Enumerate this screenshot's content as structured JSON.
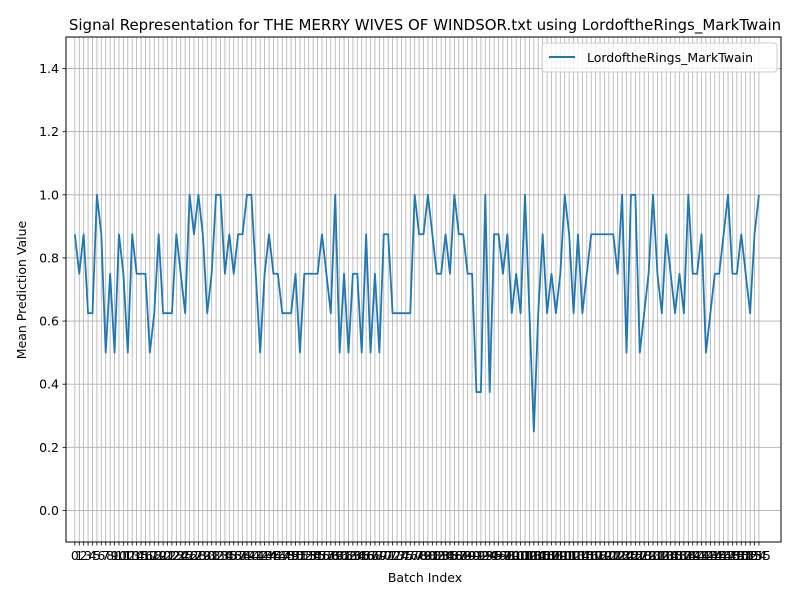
{
  "chart_data": {
    "type": "line",
    "title": "Signal Representation for THE MERRY WIVES OF WINDSOR.txt using LordoftheRings_MarkTwain",
    "xlabel": "Batch Index",
    "ylabel": "Mean Prediction Value",
    "xlim": [
      -2,
      160
    ],
    "ylim": [
      -0.1,
      1.5
    ],
    "yticks": [
      0.0,
      0.2,
      0.4,
      0.6,
      0.8,
      1.0,
      1.2,
      1.4
    ],
    "grid": true,
    "legend_position": "top-right",
    "series": [
      {
        "name": "LordoftheRings_MarkTwain",
        "color": "#1f77b4",
        "values": [
          0.875,
          0.75,
          0.875,
          0.625,
          0.625,
          1.0,
          0.875,
          0.5,
          0.75,
          0.5,
          0.875,
          0.75,
          0.5,
          0.875,
          0.75,
          0.75,
          0.75,
          0.5,
          0.625,
          0.875,
          0.625,
          0.625,
          0.625,
          0.875,
          0.75,
          0.625,
          1.0,
          0.875,
          1.0,
          0.875,
          0.625,
          0.75,
          1.0,
          1.0,
          0.75,
          0.875,
          0.75,
          0.875,
          0.875,
          1.0,
          1.0,
          0.75,
          0.5,
          0.75,
          0.875,
          0.75,
          0.75,
          0.625,
          0.625,
          0.625,
          0.75,
          0.5,
          0.75,
          0.75,
          0.75,
          0.75,
          0.875,
          0.75,
          0.625,
          1.0,
          0.5,
          0.75,
          0.5,
          0.75,
          0.75,
          0.5,
          0.875,
          0.5,
          0.75,
          0.5,
          0.875,
          0.875,
          0.625,
          0.625,
          0.625,
          0.625,
          0.625,
          1.0,
          0.875,
          0.875,
          1.0,
          0.875,
          0.75,
          0.75,
          0.875,
          0.75,
          1.0,
          0.875,
          0.875,
          0.75,
          0.75,
          0.375,
          0.375,
          1.0,
          0.375,
          0.875,
          0.875,
          0.75,
          0.875,
          0.625,
          0.75,
          0.625,
          1.0,
          0.625,
          0.25,
          0.625,
          0.875,
          0.625,
          0.75,
          0.625,
          0.75,
          1.0,
          0.875,
          0.625,
          0.875,
          0.625,
          0.75,
          0.875,
          0.875,
          0.875,
          0.875,
          0.875,
          0.875,
          0.75,
          1.0,
          0.5,
          1.0,
          1.0,
          0.5,
          0.625,
          0.75,
          1.0,
          0.75,
          0.625,
          0.875,
          0.75,
          0.625,
          0.75,
          0.625,
          1.0,
          0.75,
          0.75,
          0.875,
          0.5,
          0.625,
          0.75,
          0.75,
          0.875,
          1.0,
          0.75,
          0.75,
          0.875,
          0.75,
          0.625,
          0.875,
          1.0
        ]
      }
    ]
  }
}
